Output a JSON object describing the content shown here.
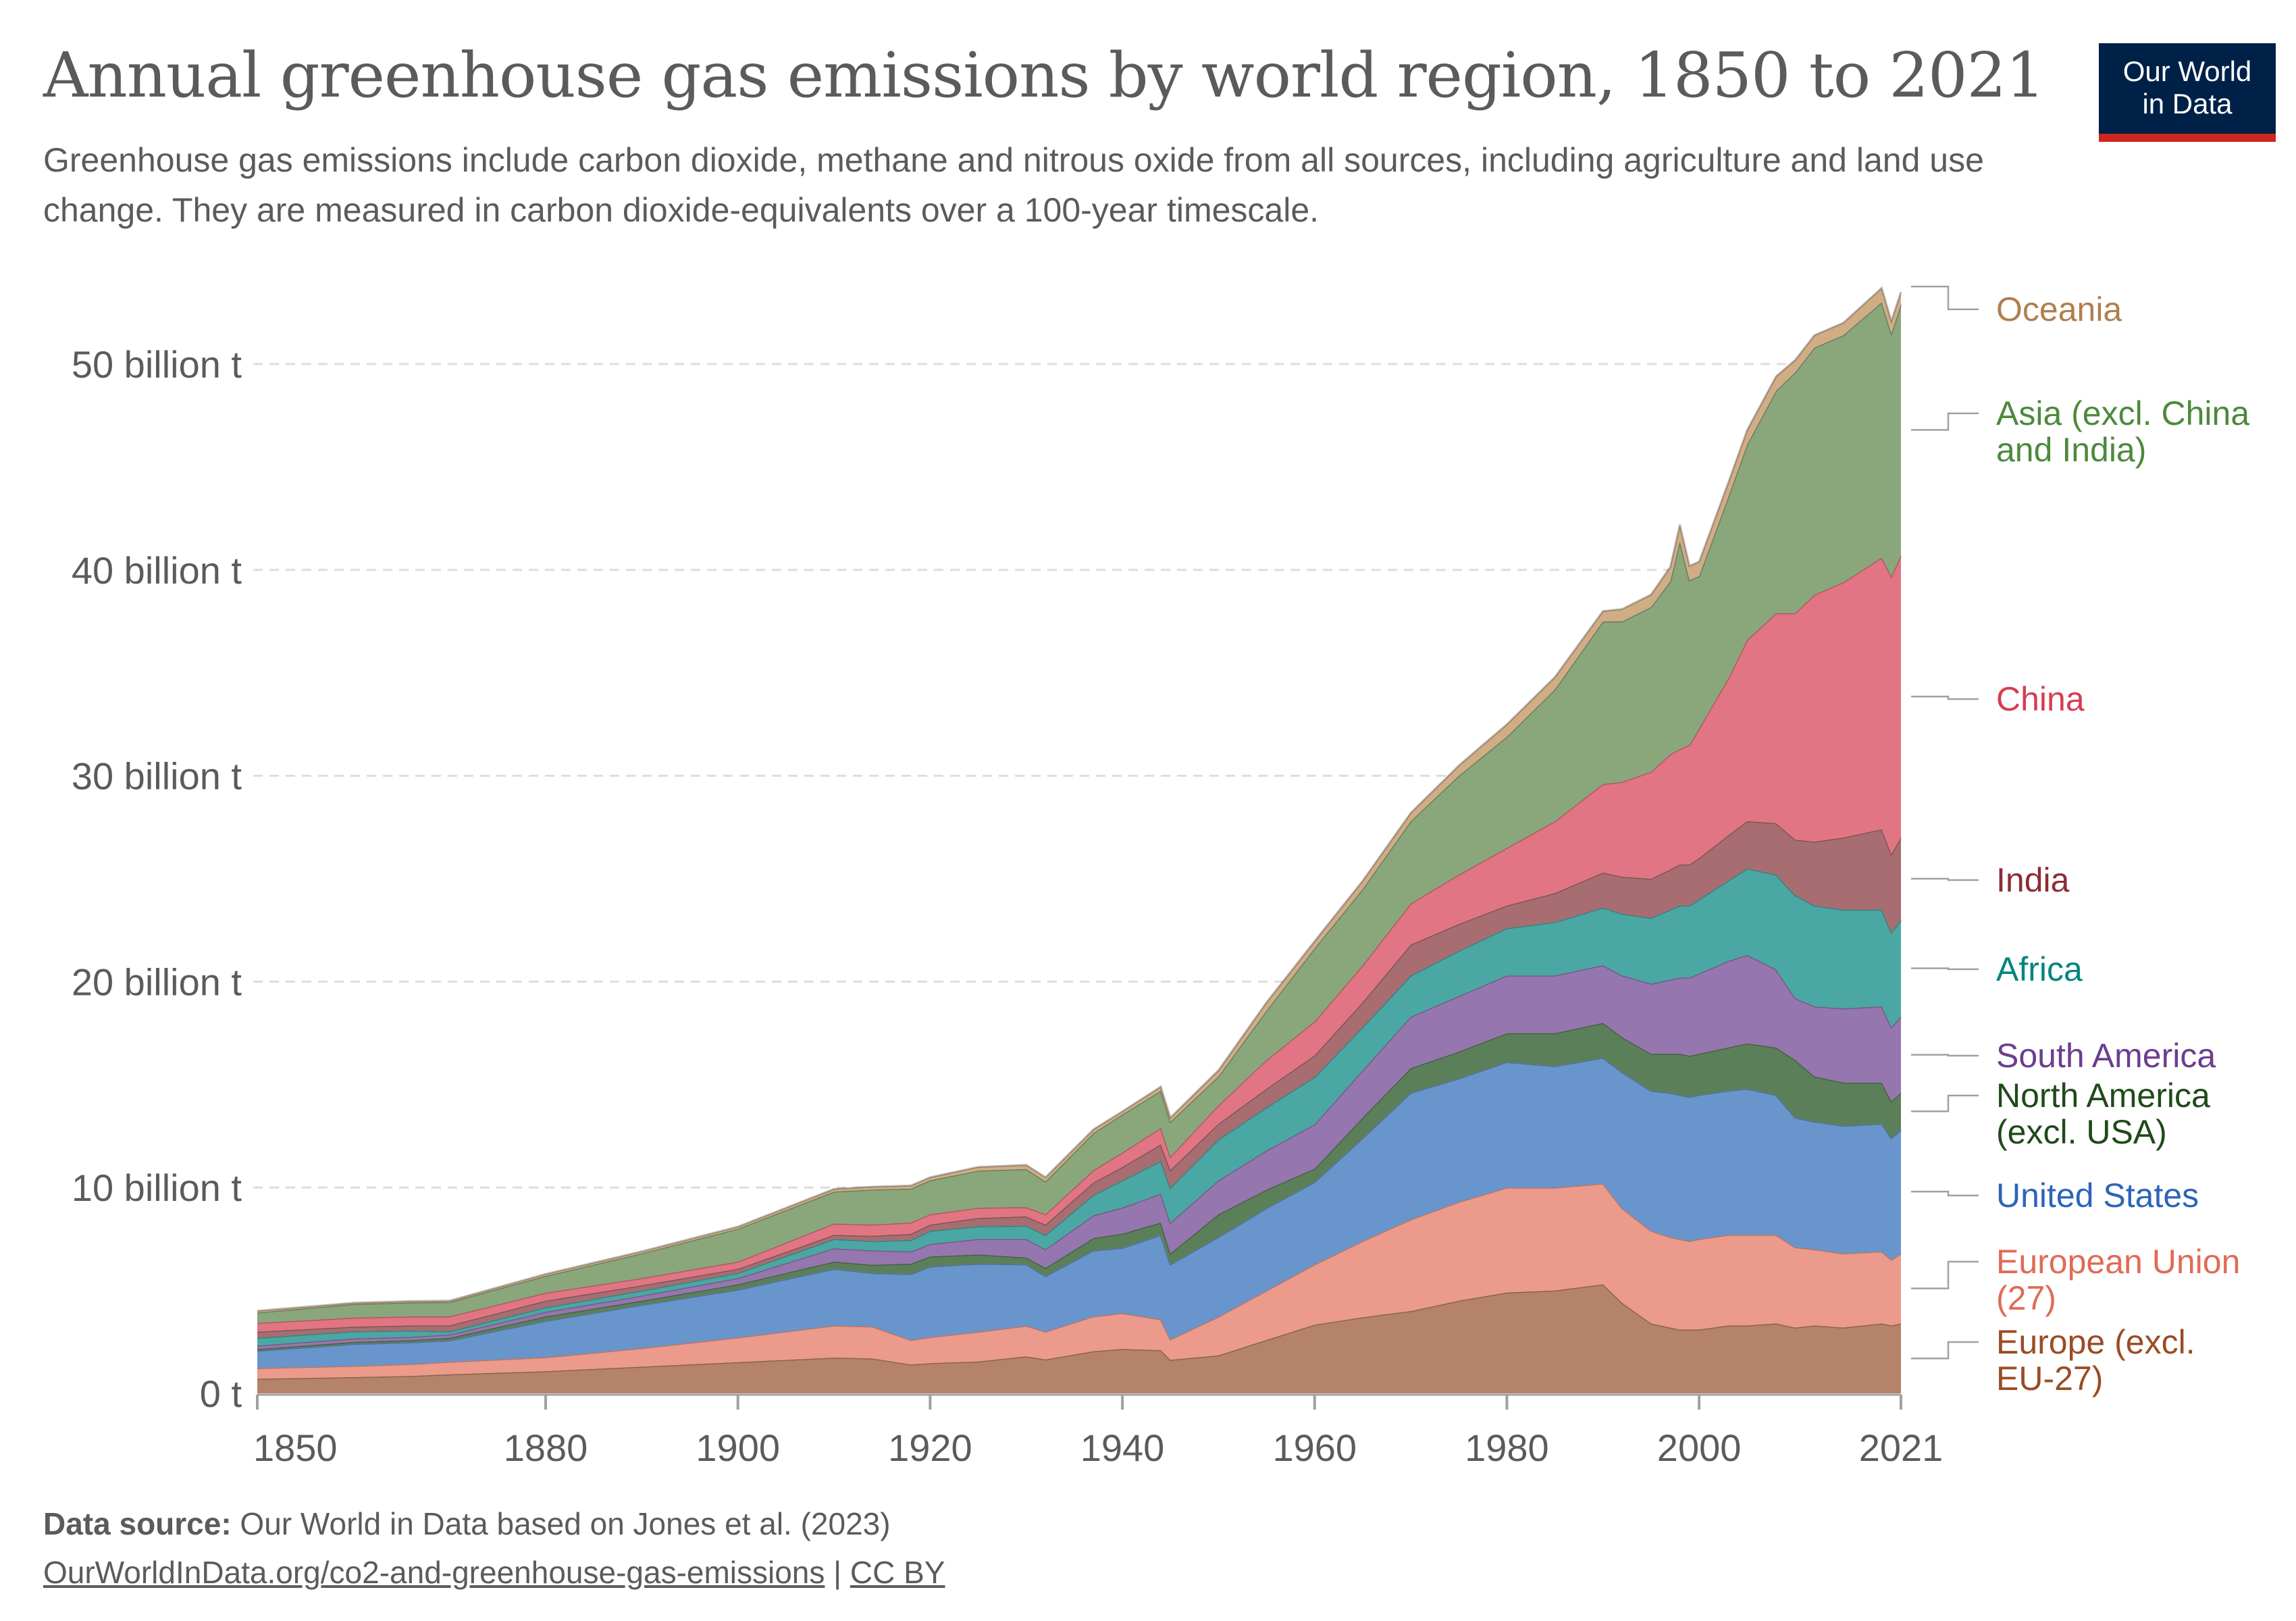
{
  "header": {
    "title": "Annual greenhouse gas emissions by world region, 1850 to 2021",
    "subtitle": "Greenhouse gas emissions include carbon dioxide, methane and nitrous oxide from all sources, including agriculture and land use change. They are measured in carbon dioxide-equivalents over a 100-year timescale.",
    "logo_line1": "Our World",
    "logo_line2": "in Data"
  },
  "footer": {
    "source_label": "Data source:",
    "source_text": " Our World in Data based on Jones et al. (2023)",
    "url_text": "OurWorldInData.org/co2-and-greenhouse-gas-emissions",
    "separator": " | ",
    "license_text": "CC BY"
  },
  "colors": {
    "gridline": "#dddddd",
    "axis": "#a0a0a0",
    "text": "#5b5b5b",
    "logo_bg": "#002147",
    "logo_accent": "#ce261e"
  },
  "chart_data": {
    "type": "area",
    "stacked": true,
    "title": "Annual greenhouse gas emissions by world region, 1850 to 2021",
    "xlabel": "",
    "ylabel": "",
    "unit": "billion t CO2e",
    "xlim": [
      1850,
      2021
    ],
    "ylim": [
      0,
      55
    ],
    "grid": true,
    "legend_placement": "right (direct labels)",
    "x_ticks": [
      {
        "value": 1850,
        "label": "1850"
      },
      {
        "value": 1880,
        "label": "1880"
      },
      {
        "value": 1900,
        "label": "1900"
      },
      {
        "value": 1920,
        "label": "1920"
      },
      {
        "value": 1940,
        "label": "1940"
      },
      {
        "value": 1960,
        "label": "1960"
      },
      {
        "value": 1980,
        "label": "1980"
      },
      {
        "value": 2000,
        "label": "2000"
      },
      {
        "value": 2021,
        "label": "2021"
      }
    ],
    "y_ticks": [
      {
        "value": 0,
        "label": "0 t"
      },
      {
        "value": 10,
        "label": "10 billion t"
      },
      {
        "value": 20,
        "label": "20 billion t"
      },
      {
        "value": 30,
        "label": "30 billion t"
      },
      {
        "value": 40,
        "label": "40 billion t"
      },
      {
        "value": 50,
        "label": "50 billion t"
      }
    ],
    "x": [
      1850,
      1860,
      1866,
      1870,
      1880,
      1890,
      1900,
      1910,
      1914,
      1918,
      1920,
      1925,
      1930,
      1932,
      1937,
      1940,
      1944,
      1945,
      1950,
      1955,
      1960,
      1965,
      1970,
      1975,
      1980,
      1985,
      1990,
      1992,
      1995,
      1997,
      1998,
      1999,
      2000,
      2003,
      2005,
      2008,
      2010,
      2012,
      2015,
      2019,
      2020,
      2021
    ],
    "series": [
      {
        "name": "Europe (excl. EU-27)",
        "label_lines": [
          "Europe (excl.",
          "EU-27)"
        ],
        "color": "#b5826a",
        "label_color": "#9a4c25",
        "values": [
          0.71,
          0.79,
          0.85,
          0.93,
          1.08,
          1.3,
          1.52,
          1.74,
          1.7,
          1.4,
          1.47,
          1.55,
          1.8,
          1.65,
          2.05,
          2.16,
          2.1,
          1.63,
          1.85,
          2.6,
          3.34,
          3.7,
          4.0,
          4.5,
          4.9,
          5.0,
          5.3,
          4.4,
          3.4,
          3.2,
          3.1,
          3.1,
          3.1,
          3.3,
          3.3,
          3.4,
          3.2,
          3.3,
          3.2,
          3.4,
          3.3,
          3.4
        ]
      },
      {
        "name": "European Union (27)",
        "label_lines": [
          "European Union",
          "(27)"
        ],
        "color": "#ec9a8b",
        "label_color": "#e06b56",
        "values": [
          0.52,
          0.55,
          0.58,
          0.61,
          0.68,
          0.9,
          1.2,
          1.56,
          1.55,
          1.2,
          1.27,
          1.45,
          1.49,
          1.35,
          1.7,
          1.74,
          1.5,
          1.0,
          1.88,
          2.4,
          2.93,
          3.7,
          4.45,
          4.8,
          5.1,
          5.0,
          4.9,
          4.6,
          4.5,
          4.4,
          4.4,
          4.3,
          4.4,
          4.4,
          4.4,
          4.3,
          3.9,
          3.7,
          3.6,
          3.5,
          3.2,
          3.4
        ]
      },
      {
        "name": "United States",
        "label_lines": [
          "United States"
        ],
        "color": "#6895cc",
        "label_color": "#2c65b8",
        "values": [
          0.84,
          1.06,
          1.05,
          1.04,
          1.76,
          2.1,
          2.32,
          2.75,
          2.6,
          3.2,
          3.42,
          3.3,
          2.98,
          2.7,
          3.2,
          3.17,
          4.1,
          3.64,
          3.87,
          4.0,
          4.0,
          5.0,
          6.15,
          6.0,
          6.1,
          5.9,
          6.1,
          6.6,
          6.8,
          7.0,
          7.0,
          7.0,
          7.0,
          7.0,
          7.1,
          6.8,
          6.3,
          6.2,
          6.2,
          6.2,
          5.9,
          6.0
        ]
      },
      {
        "name": "North America (excl. USA)",
        "label_lines": [
          "North America",
          "(excl. USA)"
        ],
        "color": "#5b7f59",
        "label_color": "#1f4a19",
        "values": [
          0.08,
          0.1,
          0.11,
          0.12,
          0.22,
          0.2,
          0.26,
          0.35,
          0.4,
          0.5,
          0.49,
          0.45,
          0.33,
          0.4,
          0.6,
          0.69,
          0.6,
          0.53,
          1.1,
          0.9,
          0.65,
          1.0,
          1.2,
          1.3,
          1.4,
          1.6,
          1.7,
          1.7,
          1.8,
          1.9,
          2.0,
          2.0,
          2.0,
          2.1,
          2.2,
          2.3,
          2.8,
          2.2,
          2.1,
          2.0,
          1.8,
          1.8
        ]
      },
      {
        "name": "South America",
        "label_lines": [
          "South America"
        ],
        "color": "#9676ae",
        "label_color": "#6b3d8f",
        "values": [
          0.17,
          0.17,
          0.16,
          0.16,
          0.22,
          0.25,
          0.3,
          0.65,
          0.7,
          0.6,
          0.61,
          0.75,
          0.9,
          0.9,
          1.1,
          1.27,
          1.4,
          1.5,
          1.65,
          1.9,
          2.15,
          2.3,
          2.5,
          2.7,
          2.8,
          2.8,
          2.8,
          3.0,
          3.4,
          3.6,
          3.7,
          3.8,
          3.9,
          4.2,
          4.3,
          3.8,
          3.0,
          3.4,
          3.6,
          3.7,
          3.6,
          3.7
        ]
      },
      {
        "name": "Africa",
        "label_lines": [
          "Africa"
        ],
        "color": "#4aa7a3",
        "label_color": "#00847e",
        "values": [
          0.38,
          0.35,
          0.3,
          0.16,
          0.22,
          0.25,
          0.25,
          0.45,
          0.45,
          0.55,
          0.64,
          0.62,
          0.65,
          0.7,
          1.0,
          1.32,
          1.6,
          1.7,
          1.99,
          2.1,
          2.3,
          2.1,
          2.0,
          2.2,
          2.3,
          2.6,
          2.8,
          3.0,
          3.2,
          3.4,
          3.5,
          3.5,
          3.6,
          3.9,
          4.2,
          4.6,
          5.0,
          4.9,
          4.8,
          4.7,
          4.6,
          4.7
        ]
      },
      {
        "name": "India",
        "label_lines": [
          "India"
        ],
        "color": "#a86d70",
        "label_color": "#8c2c35",
        "values": [
          0.3,
          0.22,
          0.25,
          0.28,
          0.32,
          0.25,
          0.2,
          0.2,
          0.25,
          0.3,
          0.3,
          0.4,
          0.45,
          0.5,
          0.6,
          0.65,
          0.8,
          0.85,
          0.76,
          0.9,
          1.05,
          1.2,
          1.5,
          1.3,
          1.1,
          1.4,
          1.7,
          1.8,
          1.9,
          1.95,
          2.0,
          2.0,
          2.0,
          2.2,
          2.3,
          2.5,
          2.7,
          3.1,
          3.5,
          3.9,
          3.8,
          4.0
        ]
      },
      {
        "name": "China",
        "label_lines": [
          "China"
        ],
        "color": "#e17583",
        "label_color": "#d73c50",
        "values": [
          0.42,
          0.44,
          0.44,
          0.44,
          0.39,
          0.35,
          0.35,
          0.55,
          0.55,
          0.55,
          0.5,
          0.5,
          0.45,
          0.5,
          0.6,
          0.7,
          0.8,
          0.65,
          0.9,
          1.4,
          1.65,
          1.8,
          2.0,
          2.4,
          2.8,
          3.5,
          4.3,
          4.6,
          5.2,
          5.6,
          5.6,
          5.8,
          6.3,
          7.6,
          8.8,
          10.2,
          11.0,
          12.0,
          12.4,
          13.2,
          13.5,
          13.7
        ]
      },
      {
        "name": "Asia (excl. China and India)",
        "label_lines": [
          "Asia (excl. China",
          "and India)"
        ],
        "color": "#8aa67b",
        "label_color": "#4c8a3c",
        "values": [
          0.51,
          0.66,
          0.68,
          0.7,
          0.82,
          1.2,
          1.6,
          1.55,
          1.7,
          1.65,
          1.65,
          1.8,
          1.85,
          1.6,
          1.8,
          1.85,
          1.8,
          1.7,
          1.4,
          2.4,
          3.55,
          3.7,
          4.0,
          4.8,
          5.4,
          6.4,
          7.9,
          7.8,
          8.0,
          8.4,
          10.1,
          8.0,
          7.4,
          8.8,
          9.5,
          10.8,
          11.7,
          12.0,
          12.0,
          12.4,
          11.8,
          12.2
        ]
      },
      {
        "name": "Oceania",
        "label_lines": [
          "Oceania"
        ],
        "color": "#d1ad86",
        "label_color": "#b07e4f",
        "values": [
          0.08,
          0.06,
          0.06,
          0.06,
          0.09,
          0.1,
          0.1,
          0.13,
          0.14,
          0.15,
          0.15,
          0.18,
          0.2,
          0.2,
          0.18,
          0.15,
          0.2,
          0.2,
          0.3,
          0.4,
          0.35,
          0.4,
          0.4,
          0.5,
          0.6,
          0.6,
          0.5,
          0.6,
          0.6,
          0.7,
          0.8,
          0.7,
          0.7,
          0.7,
          0.7,
          0.7,
          0.6,
          0.6,
          0.6,
          0.7,
          0.6,
          0.6
        ]
      }
    ]
  }
}
